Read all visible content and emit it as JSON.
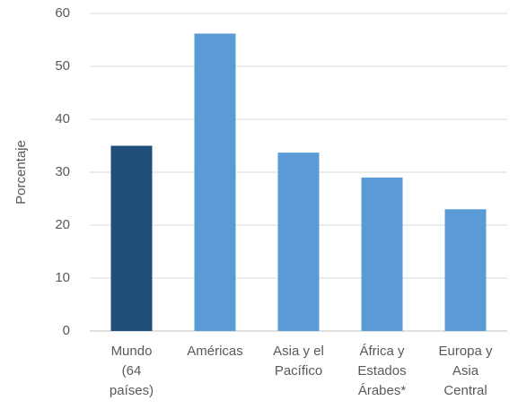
{
  "chart_data": {
    "type": "bar",
    "y_label": "Porcentaje",
    "categories": [
      [
        "Mundo",
        "(64",
        "países)"
      ],
      [
        "Américas"
      ],
      [
        "Asia y el",
        "Pacífico"
      ],
      [
        "África y",
        "Estados",
        "Árabes*"
      ],
      [
        "Europa y",
        "Asia",
        "Central"
      ]
    ],
    "values": [
      35,
      56.2,
      33.7,
      29,
      23
    ],
    "colors": [
      "#1f4e79",
      "#5b9bd5",
      "#5b9bd5",
      "#5b9bd5",
      "#5b9bd5"
    ],
    "ylim": [
      0,
      60
    ],
    "yticks": [
      0,
      10,
      20,
      30,
      40,
      50,
      60
    ],
    "grid": true
  }
}
